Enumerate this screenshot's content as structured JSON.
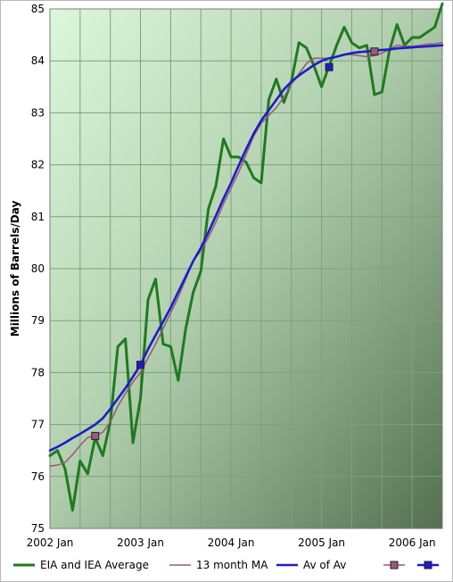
{
  "chart_data": {
    "type": "line",
    "title": "",
    "xlabel": "",
    "ylabel": "Millions of Barrels/Day",
    "x_tick_labels": [
      "2002 Jan",
      "2003 Jan",
      "2004 Jan",
      "2005 Jan",
      "2006 Jan"
    ],
    "x_range": [
      "2002-01",
      "2006-05"
    ],
    "ylim": [
      75,
      85
    ],
    "y_tick_labels": [
      "75",
      "76",
      "77",
      "78",
      "79",
      "80",
      "81",
      "82",
      "83",
      "84",
      "85"
    ],
    "grid": true,
    "legend_position": "bottom",
    "x": [
      "2002-01",
      "2002-02",
      "2002-03",
      "2002-04",
      "2002-05",
      "2002-06",
      "2002-07",
      "2002-08",
      "2002-09",
      "2002-10",
      "2002-11",
      "2002-12",
      "2003-01",
      "2003-02",
      "2003-03",
      "2003-04",
      "2003-05",
      "2003-06",
      "2003-07",
      "2003-08",
      "2003-09",
      "2003-10",
      "2003-11",
      "2003-12",
      "2004-01",
      "2004-02",
      "2004-03",
      "2004-04",
      "2004-05",
      "2004-06",
      "2004-07",
      "2004-08",
      "2004-09",
      "2004-10",
      "2004-11",
      "2004-12",
      "2005-01",
      "2005-02",
      "2005-03",
      "2005-04",
      "2005-05",
      "2005-06",
      "2005-07",
      "2005-08",
      "2005-09",
      "2005-10",
      "2005-11",
      "2005-12",
      "2006-01",
      "2006-02",
      "2006-03",
      "2006-04",
      "2006-05"
    ],
    "series": [
      {
        "name": "EIA and IEA Average",
        "color": "#1f7a1f",
        "values": [
          76.4,
          76.5,
          76.15,
          75.35,
          76.3,
          76.05,
          76.75,
          76.4,
          77.05,
          78.5,
          78.65,
          76.65,
          77.5,
          79.4,
          79.8,
          78.55,
          78.5,
          77.85,
          78.85,
          79.55,
          79.95,
          81.15,
          81.6,
          82.5,
          82.15,
          82.15,
          82.05,
          81.75,
          81.65,
          83.25,
          83.65,
          83.2,
          83.6,
          84.35,
          84.25,
          83.9,
          83.5,
          83.9,
          84.3,
          84.65,
          84.35,
          84.25,
          84.3,
          83.35,
          83.4,
          84.2,
          84.7,
          84.3,
          84.45,
          84.45,
          84.55,
          84.65,
          85.1
        ]
      },
      {
        "name": "13 month MA",
        "color": "#9a5a7a",
        "values": [
          76.2,
          76.22,
          76.27,
          76.42,
          76.6,
          76.75,
          76.78,
          76.85,
          77.05,
          77.35,
          77.6,
          77.82,
          78.0,
          78.28,
          78.55,
          78.85,
          79.15,
          79.45,
          79.8,
          80.15,
          80.35,
          80.6,
          80.9,
          81.25,
          81.55,
          81.85,
          82.2,
          82.55,
          82.8,
          82.95,
          83.1,
          83.3,
          83.55,
          83.75,
          83.95,
          84.05,
          84.05,
          84.05,
          84.08,
          84.12,
          84.12,
          84.1,
          84.08,
          84.1,
          84.15,
          84.22,
          84.3,
          84.28,
          84.28,
          84.3,
          84.32,
          84.33,
          84.35
        ]
      },
      {
        "name": "Av of Av",
        "color": "#1c1ccc",
        "values": [
          76.5,
          76.57,
          76.65,
          76.74,
          76.82,
          76.91,
          77.0,
          77.12,
          77.3,
          77.5,
          77.7,
          77.92,
          78.15,
          78.45,
          78.72,
          78.98,
          79.25,
          79.55,
          79.85,
          80.15,
          80.4,
          80.7,
          81.02,
          81.35,
          81.65,
          81.98,
          82.3,
          82.6,
          82.85,
          83.05,
          83.25,
          83.45,
          83.6,
          83.72,
          83.82,
          83.92,
          84.0,
          84.05,
          84.08,
          84.12,
          84.15,
          84.17,
          84.18,
          84.2,
          84.21,
          84.22,
          84.24,
          84.25,
          84.26,
          84.27,
          84.28,
          84.29,
          84.3
        ]
      }
    ],
    "markers": [
      {
        "name": "",
        "color": "#9a5a7a",
        "points": [
          [
            "2002-07",
            76.78
          ],
          [
            "2005-08",
            84.18
          ]
        ]
      },
      {
        "name": "",
        "color": "#1c1ccc",
        "points": [
          [
            "2003-01",
            78.15
          ],
          [
            "2005-02",
            83.88
          ]
        ]
      }
    ]
  }
}
